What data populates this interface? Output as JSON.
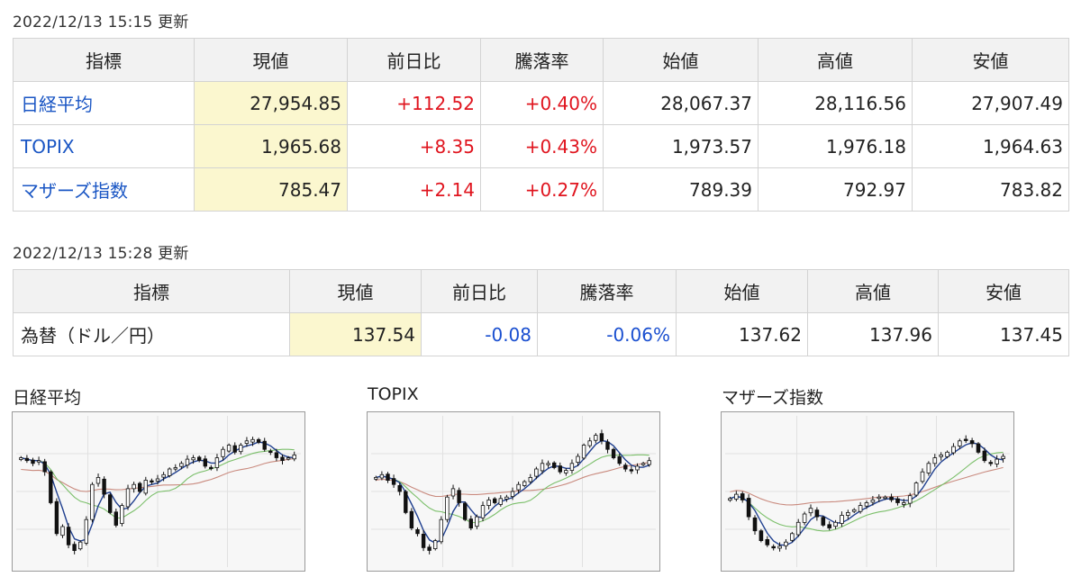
{
  "indices": {
    "updated": "2022/12/13 15:15 更新",
    "headers": [
      "指標",
      "現値",
      "前日比",
      "騰落率",
      "始値",
      "高値",
      "安値"
    ],
    "rows": [
      {
        "name": "日経平均",
        "current": "27,954.85",
        "change": "+112.52",
        "rate": "+0.40%",
        "open": "28,067.37",
        "high": "28,116.56",
        "low": "27,907.49",
        "direction": "up"
      },
      {
        "name": "TOPIX",
        "current": "1,965.68",
        "change": "+8.35",
        "rate": "+0.43%",
        "open": "1,973.57",
        "high": "1,976.18",
        "low": "1,964.63",
        "direction": "up"
      },
      {
        "name": "マザーズ指数",
        "current": "785.47",
        "change": "+2.14",
        "rate": "+0.27%",
        "open": "789.39",
        "high": "792.97",
        "low": "783.82",
        "direction": "up"
      }
    ]
  },
  "forex": {
    "updated": "2022/12/13 15:28 更新",
    "headers": [
      "指標",
      "現値",
      "前日比",
      "騰落率",
      "始値",
      "高値",
      "安値"
    ],
    "rows": [
      {
        "name": "為替（ドル／円）",
        "current": "137.54",
        "change": "-0.08",
        "rate": "-0.06%",
        "open": "137.62",
        "high": "137.96",
        "low": "137.45",
        "direction": "down"
      }
    ]
  },
  "colors": {
    "up": "#e0141e",
    "down": "#1a4fd0",
    "link": "#1a56c4",
    "highlight": "#fbf7cf",
    "header_bg": "#f2f2f2",
    "ma_short": "#1f3f8f",
    "ma_mid": "#7bbf6a",
    "ma_long": "#c98a7e"
  },
  "charts": [
    {
      "title": "日経平均",
      "chart_data": {
        "type": "candlestick",
        "series": [
          {
            "values": [
              0.74,
              0.72,
              0.7,
              0.72,
              0.64,
              0.42,
              0.2,
              0.25,
              0.12,
              0.08,
              0.14,
              0.3,
              0.55,
              0.6,
              0.48,
              0.35,
              0.26,
              0.4,
              0.52,
              0.55,
              0.5,
              0.58,
              0.57,
              0.59,
              0.62,
              0.66,
              0.67,
              0.7,
              0.73,
              0.74,
              0.72,
              0.68,
              0.67,
              0.74,
              0.8,
              0.83,
              0.78,
              0.83,
              0.86,
              0.87,
              0.85,
              0.8,
              0.78,
              0.74,
              0.72,
              0.74,
              0.76
            ]
          }
        ]
      }
    },
    {
      "title": "TOPIX",
      "chart_data": {
        "type": "candlestick",
        "series": [
          {
            "values": [
              0.6,
              0.62,
              0.58,
              0.55,
              0.5,
              0.35,
              0.24,
              0.2,
              0.1,
              0.08,
              0.15,
              0.3,
              0.46,
              0.52,
              0.42,
              0.3,
              0.24,
              0.32,
              0.4,
              0.44,
              0.42,
              0.45,
              0.46,
              0.5,
              0.55,
              0.57,
              0.6,
              0.66,
              0.7,
              0.7,
              0.67,
              0.64,
              0.65,
              0.7,
              0.75,
              0.83,
              0.86,
              0.9,
              0.86,
              0.8,
              0.74,
              0.7,
              0.66,
              0.65,
              0.68,
              0.7,
              0.72
            ]
          }
        ]
      }
    },
    {
      "title": "マザーズ指数",
      "chart_data": {
        "type": "candlestick",
        "series": [
          {
            "values": [
              0.45,
              0.48,
              0.44,
              0.32,
              0.22,
              0.15,
              0.12,
              0.1,
              0.11,
              0.14,
              0.2,
              0.28,
              0.34,
              0.38,
              0.32,
              0.26,
              0.24,
              0.28,
              0.33,
              0.35,
              0.37,
              0.4,
              0.42,
              0.44,
              0.46,
              0.46,
              0.44,
              0.42,
              0.42,
              0.47,
              0.56,
              0.64,
              0.7,
              0.74,
              0.76,
              0.78,
              0.82,
              0.86,
              0.87,
              0.84,
              0.78,
              0.72,
              0.7,
              0.73,
              0.75
            ]
          }
        ]
      }
    }
  ]
}
